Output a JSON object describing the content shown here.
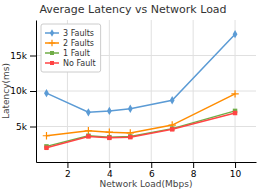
{
  "chart_data": {
    "type": "line",
    "title": "Average Latency vs Network Load",
    "xlabel": "Network Load(Mbps)",
    "ylabel": "Latency(ms)",
    "x": [
      1,
      3,
      4,
      5,
      7,
      10
    ],
    "series": [
      {
        "name": "3 Faults",
        "color": "#5B9BD5",
        "marker": "diamond",
        "values": [
          9700,
          7000,
          7200,
          7500,
          8700,
          18000
        ]
      },
      {
        "name": "2 Faults",
        "color": "#FF8C00",
        "marker": "plus",
        "values": [
          3700,
          4400,
          4200,
          4100,
          5200,
          9600
        ]
      },
      {
        "name": "1 Fault",
        "color": "#70AD47",
        "marker": "square",
        "values": [
          2200,
          3700,
          3500,
          3600,
          4700,
          7200
        ]
      },
      {
        "name": "No Fault",
        "color": "#FF4444",
        "marker": "square",
        "values": [
          2000,
          3600,
          3400,
          3500,
          4600,
          6900
        ]
      }
    ],
    "xlim": [
      0.5,
      11
    ],
    "ylim": [
      0,
      20000
    ],
    "xticks": [
      2,
      4,
      6,
      8,
      10
    ],
    "yticks": [
      {
        "value": 5000,
        "label": "5k"
      },
      {
        "value": 10000,
        "label": "10k"
      },
      {
        "value": 15000,
        "label": "15k"
      }
    ],
    "grid": true,
    "legend": "upper left"
  }
}
